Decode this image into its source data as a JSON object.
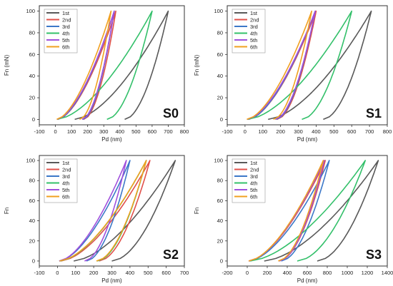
{
  "chart_data": [
    {
      "type": "line",
      "panel_label": "S0",
      "xlabel": "Pd (nm)",
      "ylabel": "Fn (mN)",
      "xlim": [
        -100,
        800
      ],
      "ylim": [
        -5,
        105
      ],
      "xticks": [
        -100,
        0,
        100,
        200,
        300,
        400,
        500,
        600,
        700,
        800
      ],
      "yticks": [
        0,
        20,
        40,
        60,
        80,
        100
      ],
      "legend_position": "top-left",
      "series": [
        {
          "name": "1st",
          "color": "#595959",
          "max_depth": 700,
          "residual": 430,
          "x_offset": 120
        },
        {
          "name": "2nd",
          "color": "#e0504a",
          "max_depth": 375,
          "residual": 175,
          "x_offset": 15
        },
        {
          "name": "3rd",
          "color": "#3c78c8",
          "max_depth": 365,
          "residual": 170,
          "x_offset": 15
        },
        {
          "name": "4th",
          "color": "#33c06a",
          "max_depth": 600,
          "residual": 320,
          "x_offset": 10
        },
        {
          "name": "5th",
          "color": "#a050dc",
          "max_depth": 365,
          "residual": 165,
          "x_offset": 10
        },
        {
          "name": "6th",
          "color": "#f0a020",
          "max_depth": 345,
          "residual": 150,
          "x_offset": 8
        }
      ]
    },
    {
      "type": "line",
      "panel_label": "S1",
      "xlabel": "Pd (nm)",
      "ylabel": "Fn (mN)",
      "xlim": [
        -100,
        800
      ],
      "ylim": [
        -5,
        105
      ],
      "xticks": [
        -100,
        0,
        100,
        200,
        300,
        400,
        500,
        600,
        700,
        800
      ],
      "yticks": [
        0,
        20,
        40,
        60,
        80,
        100
      ],
      "legend_position": "top-left",
      "series": [
        {
          "name": "1st",
          "color": "#595959",
          "max_depth": 710,
          "residual": 440,
          "x_offset": 130
        },
        {
          "name": "2nd",
          "color": "#e0504a",
          "max_depth": 400,
          "residual": 180,
          "x_offset": 20
        },
        {
          "name": "3rd",
          "color": "#3c78c8",
          "max_depth": 395,
          "residual": 175,
          "x_offset": 20
        },
        {
          "name": "4th",
          "color": "#33c06a",
          "max_depth": 600,
          "residual": 320,
          "x_offset": 15
        },
        {
          "name": "5th",
          "color": "#a050dc",
          "max_depth": 395,
          "residual": 170,
          "x_offset": 12
        },
        {
          "name": "6th",
          "color": "#f0a020",
          "max_depth": 375,
          "residual": 160,
          "x_offset": 10
        }
      ]
    },
    {
      "type": "line",
      "panel_label": "S2",
      "xlabel": "Pd (nm)",
      "ylabel": "Fn",
      "xlim": [
        -100,
        700
      ],
      "ylim": [
        -5,
        105
      ],
      "xticks": [
        -100,
        0,
        100,
        200,
        300,
        400,
        500,
        600,
        700
      ],
      "yticks": [
        0,
        20,
        40,
        60,
        80,
        100
      ],
      "legend_position": "top-left",
      "series": [
        {
          "name": "1st",
          "color": "#595959",
          "max_depth": 650,
          "residual": 300,
          "x_offset": 90
        },
        {
          "name": "2nd",
          "color": "#e0504a",
          "max_depth": 510,
          "residual": 230,
          "x_offset": 20
        },
        {
          "name": "3rd",
          "color": "#3c78c8",
          "max_depth": 400,
          "residual": 160,
          "x_offset": 10
        },
        {
          "name": "4th",
          "color": "#33c06a",
          "max_depth": 490,
          "residual": 220,
          "x_offset": 15
        },
        {
          "name": "5th",
          "color": "#a050dc",
          "max_depth": 380,
          "residual": 150,
          "x_offset": 10
        },
        {
          "name": "6th",
          "color": "#f0a020",
          "max_depth": 490,
          "residual": 215,
          "x_offset": 12
        }
      ]
    },
    {
      "type": "line",
      "panel_label": "S3",
      "xlabel": "Pd (nm)",
      "ylabel": "Fn",
      "xlim": [
        -200,
        1400
      ],
      "ylim": [
        -5,
        105
      ],
      "xticks": [
        -200,
        0,
        200,
        400,
        600,
        800,
        1000,
        1200,
        1400
      ],
      "yticks": [
        0,
        20,
        40,
        60,
        80,
        100
      ],
      "legend_position": "top-left",
      "series": [
        {
          "name": "1st",
          "color": "#595959",
          "max_depth": 1310,
          "residual": 700,
          "x_offset": 170
        },
        {
          "name": "2nd",
          "color": "#e0504a",
          "max_depth": 780,
          "residual": 320,
          "x_offset": 15
        },
        {
          "name": "3rd",
          "color": "#3c78c8",
          "max_depth": 820,
          "residual": 340,
          "x_offset": 20
        },
        {
          "name": "4th",
          "color": "#33c06a",
          "max_depth": 1180,
          "residual": 500,
          "x_offset": 30
        },
        {
          "name": "5th",
          "color": "#a050dc",
          "max_depth": 770,
          "residual": 320,
          "x_offset": 15
        },
        {
          "name": "6th",
          "color": "#f0a020",
          "max_depth": 760,
          "residual": 310,
          "x_offset": 15
        }
      ]
    }
  ]
}
